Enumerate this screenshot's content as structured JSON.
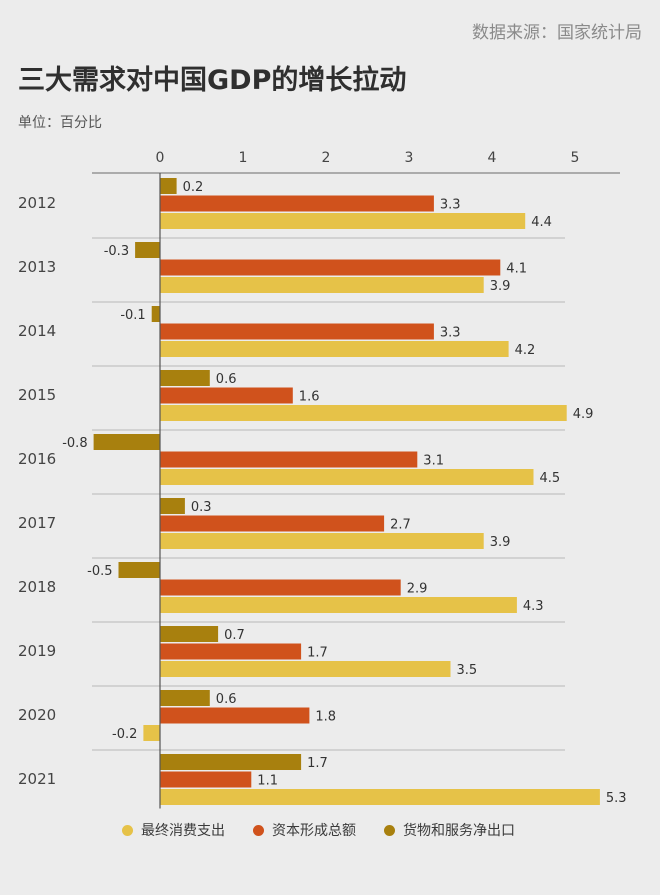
{
  "source": "数据来源：国家统计局",
  "title": "三大需求对中国GDP的增长拉动",
  "unit": "单位：百分比",
  "chart_data": {
    "type": "bar",
    "orientation": "horizontal",
    "categories": [
      "2012",
      "2013",
      "2014",
      "2015",
      "2016",
      "2017",
      "2018",
      "2019",
      "2020",
      "2021"
    ],
    "series": [
      {
        "name": "货物和服务净出口",
        "color": "#a8800e",
        "values": [
          0.2,
          -0.3,
          -0.1,
          0.6,
          -0.8,
          0.3,
          -0.5,
          0.7,
          0.6,
          1.7
        ]
      },
      {
        "name": "资本形成总额",
        "color": "#d0521c",
        "values": [
          3.3,
          4.1,
          3.3,
          1.6,
          3.1,
          2.7,
          2.9,
          1.7,
          1.8,
          1.1
        ]
      },
      {
        "name": "最终消费支出",
        "color": "#e6c248",
        "values": [
          4.4,
          3.9,
          4.2,
          4.9,
          4.5,
          3.9,
          4.3,
          3.5,
          -0.2,
          5.3
        ]
      }
    ],
    "xticks": [
      "0",
      "1",
      "2",
      "3",
      "4",
      "5"
    ],
    "xlim": [
      -0.8,
      5.3
    ],
    "legend_order": [
      "最终消费支出",
      "资本形成总额",
      "货物和服务净出口"
    ],
    "legend_position": "bottom",
    "grid": false
  }
}
